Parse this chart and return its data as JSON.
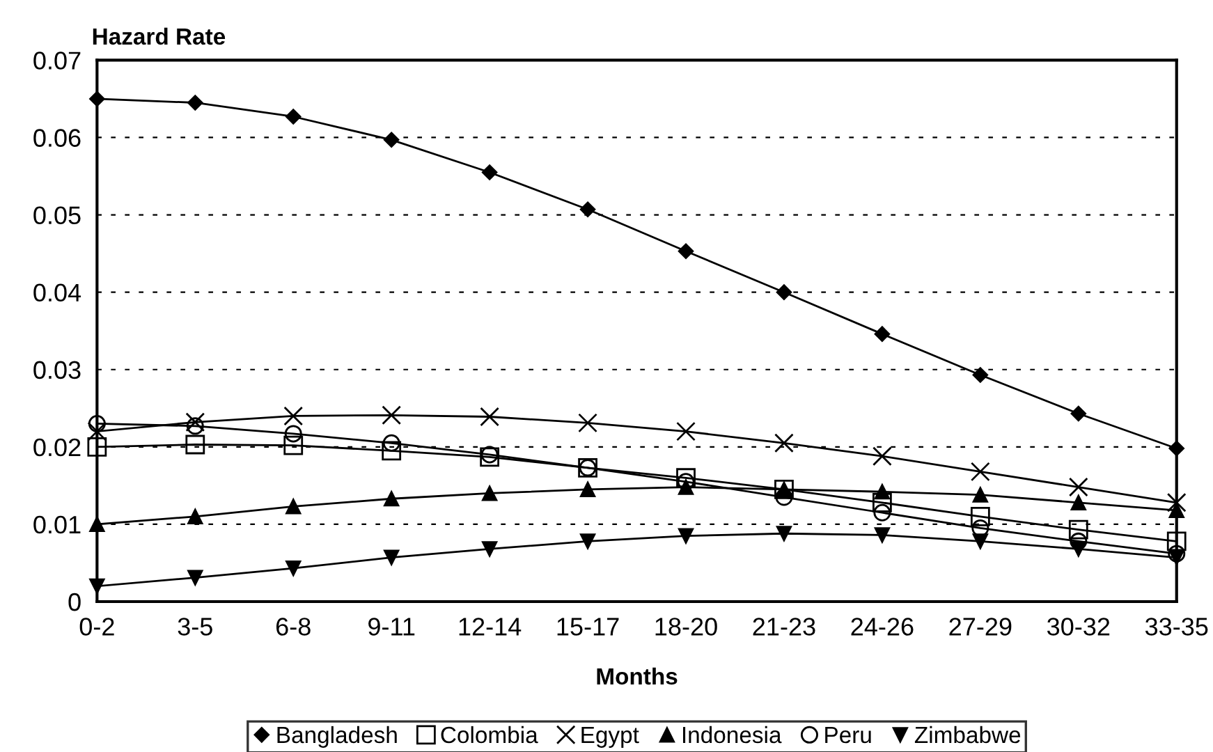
{
  "chart_data": {
    "type": "line",
    "ylabel": "Hazard Rate",
    "xlabel": "Months",
    "categories": [
      "0-2",
      "3-5",
      "6-8",
      "9-11",
      "12-14",
      "15-17",
      "18-20",
      "21-23",
      "24-26",
      "27-29",
      "30-32",
      "33-35"
    ],
    "ylim": [
      0,
      0.07
    ],
    "yticks": [
      {
        "value": 0,
        "label": "0"
      },
      0.01,
      0.02,
      0.03,
      0.04,
      0.05,
      0.06,
      0.07
    ],
    "grid": "y",
    "legend": "bottom",
    "series": [
      {
        "name": "Bangladesh",
        "color": "#000000",
        "marker": "diamond",
        "values": [
          0.065,
          0.0645,
          0.0627,
          0.0597,
          0.0555,
          0.0507,
          0.0453,
          0.04,
          0.0346,
          0.0293,
          0.0243,
          0.0198
        ]
      },
      {
        "name": "Colombia",
        "color": "#000000",
        "marker": "square",
        "values": [
          0.02,
          0.0203,
          0.0202,
          0.0195,
          0.0187,
          0.0173,
          0.016,
          0.0145,
          0.0128,
          0.011,
          0.0093,
          0.0078
        ]
      },
      {
        "name": "Egypt",
        "color": "#000000",
        "marker": "cross",
        "values": [
          0.022,
          0.0232,
          0.024,
          0.0241,
          0.0239,
          0.0231,
          0.022,
          0.0205,
          0.0188,
          0.0168,
          0.0148,
          0.0128
        ]
      },
      {
        "name": "Indonesia",
        "color": "#000000",
        "marker": "triangle",
        "values": [
          0.01,
          0.011,
          0.0123,
          0.0133,
          0.014,
          0.0145,
          0.0148,
          0.0145,
          0.0142,
          0.0138,
          0.0128,
          0.0118
        ]
      },
      {
        "name": "Peru",
        "color": "#000000",
        "marker": "circle",
        "values": [
          0.023,
          0.0227,
          0.0217,
          0.0205,
          0.019,
          0.0173,
          0.0155,
          0.0135,
          0.0115,
          0.0095,
          0.0078,
          0.0062
        ]
      },
      {
        "name": "Zimbabwe",
        "color": "#000000",
        "marker": "triangle_down",
        "values": [
          0.002,
          0.0031,
          0.0043,
          0.0057,
          0.0068,
          0.0078,
          0.0085,
          0.0088,
          0.0086,
          0.0078,
          0.0068,
          0.0057
        ]
      }
    ]
  }
}
